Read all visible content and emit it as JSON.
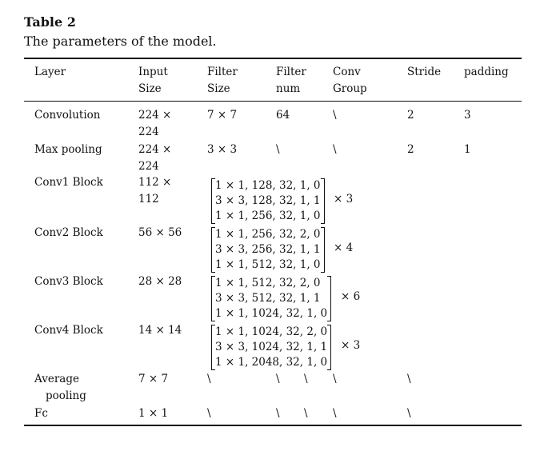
{
  "caption": {
    "label": "Table 2",
    "text": "The parameters of the model."
  },
  "headers": {
    "layer": "Layer",
    "input": [
      "Input",
      "Size"
    ],
    "filter_size": [
      "Filter",
      "Size"
    ],
    "filter_num": [
      "Filter",
      "num"
    ],
    "conv_group": [
      "Conv",
      "Group"
    ],
    "stride": "Stride",
    "padding": "padding"
  },
  "rows": {
    "conv": {
      "layer": "Convolution",
      "input": [
        "224 ×",
        "224"
      ],
      "filter_size": "7 × 7",
      "filter_num": "64",
      "conv_group": "\\",
      "stride": "2",
      "padding": "3"
    },
    "maxpool": {
      "layer": "Max pooling",
      "input": [
        "224 ×",
        "224"
      ],
      "filter_size": "3 × 3",
      "filter_num": "\\",
      "conv_group": "\\",
      "stride": "2",
      "padding": "1"
    },
    "conv1": {
      "layer": "Conv1 Block",
      "input": [
        "112 ×",
        "112"
      ],
      "matrix": [
        "1 × 1, 128, 32, 1, 0",
        "3 × 3, 128, 32, 1, 1",
        "1 × 1, 256, 32, 1, 0"
      ],
      "repeat": "× 3"
    },
    "conv2": {
      "layer": "Conv2 Block",
      "input": "56 × 56",
      "matrix": [
        "1 × 1, 256, 32, 2, 0",
        "3 × 3, 256, 32, 1, 1",
        "1 × 1, 512, 32, 1, 0"
      ],
      "repeat": "× 4"
    },
    "conv3": {
      "layer": "Conv3 Block",
      "input": "28 × 28",
      "matrix": [
        "1 × 1, 512, 32, 2, 0",
        "3 × 3, 512, 32, 1, 1",
        "1 × 1, 1024, 32, 1, 0"
      ],
      "repeat": "× 6"
    },
    "conv4": {
      "layer": "Conv4 Block",
      "input": "14 × 14",
      "matrix": [
        "1 × 1, 1024, 32, 2, 0",
        "3 × 3, 1024, 32, 1, 1",
        "1 × 1, 2048, 32, 1, 0"
      ],
      "repeat": "× 3"
    },
    "avgpool": {
      "layer": [
        "Average",
        "pooling"
      ],
      "input": "7 × 7",
      "filter_size": "\\",
      "filter_num": "\\",
      "extra": "\\",
      "conv_group": "\\",
      "stride": "\\"
    },
    "fc": {
      "layer": "Fc",
      "input": "1 × 1",
      "filter_size": "\\",
      "filter_num": "\\",
      "extra": "\\",
      "conv_group": "\\",
      "stride": "\\"
    }
  }
}
